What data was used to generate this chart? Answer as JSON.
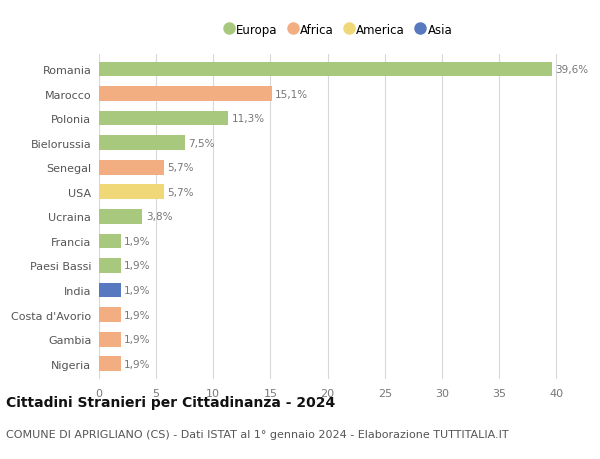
{
  "countries": [
    "Romania",
    "Marocco",
    "Polonia",
    "Bielorussia",
    "Senegal",
    "USA",
    "Ucraina",
    "Francia",
    "Paesi Bassi",
    "India",
    "Costa d'Avorio",
    "Gambia",
    "Nigeria"
  ],
  "values": [
    39.6,
    15.1,
    11.3,
    7.5,
    5.7,
    5.7,
    3.8,
    1.9,
    1.9,
    1.9,
    1.9,
    1.9,
    1.9
  ],
  "labels": [
    "39,6%",
    "15,1%",
    "11,3%",
    "7,5%",
    "5,7%",
    "5,7%",
    "3,8%",
    "1,9%",
    "1,9%",
    "1,9%",
    "1,9%",
    "1,9%",
    "1,9%"
  ],
  "continents": [
    "Europa",
    "Africa",
    "Europa",
    "Europa",
    "Africa",
    "America",
    "Europa",
    "Europa",
    "Europa",
    "Asia",
    "Africa",
    "Africa",
    "Africa"
  ],
  "continent_colors": {
    "Europa": "#a8c87e",
    "Africa": "#f2ae80",
    "America": "#f0d878",
    "Asia": "#5878c0"
  },
  "legend_order": [
    "Europa",
    "Africa",
    "America",
    "Asia"
  ],
  "xlim": [
    0,
    42
  ],
  "xticks": [
    0,
    5,
    10,
    15,
    20,
    25,
    30,
    35,
    40
  ],
  "title": "Cittadini Stranieri per Cittadinanza - 2024",
  "subtitle": "COMUNE DI APRIGLIANO (CS) - Dati ISTAT al 1° gennaio 2024 - Elaborazione TUTTITALIA.IT",
  "title_fontsize": 10,
  "subtitle_fontsize": 8,
  "label_fontsize": 7.5,
  "tick_fontsize": 8,
  "legend_fontsize": 8.5,
  "bar_height": 0.6,
  "background_color": "#ffffff",
  "grid_color": "#d8d8d8"
}
